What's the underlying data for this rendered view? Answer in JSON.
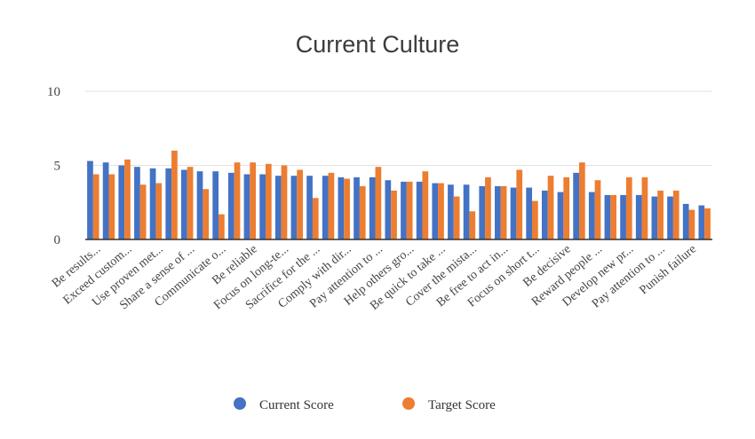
{
  "chart_data": {
    "type": "bar",
    "title": "Current Culture",
    "xlabel": "",
    "ylabel": "",
    "ylim": [
      0,
      10
    ],
    "yticks": [
      0,
      5,
      10
    ],
    "grid": true,
    "legend_position": "bottom",
    "categories": [
      "Be results...",
      "",
      "Exceed custom...",
      "",
      "Use proven met...",
      "",
      "Share a sense of ...",
      "",
      "Communicate o...",
      "",
      "Be reliable",
      "",
      "Focus on long-te...",
      "",
      "Sacrifice for the ...",
      "",
      "Comply with dir...",
      "",
      "Pay attention to ...",
      "",
      "Help others gro...",
      "",
      "Be quick to take ...",
      "",
      "Cover the mista...",
      "",
      "Be free to act in...",
      "",
      "Focus on short t...",
      "",
      "Be decisive",
      "",
      "Reward people ...",
      "",
      "Develop new pr...",
      "",
      "Pay attention to ...",
      "",
      "Punish failure",
      ""
    ],
    "series": [
      {
        "name": "Current Score",
        "color": "#4472c4",
        "values": [
          5.3,
          5.2,
          5.0,
          4.9,
          4.8,
          4.8,
          4.7,
          4.6,
          4.6,
          4.5,
          4.4,
          4.4,
          4.3,
          4.3,
          4.3,
          4.3,
          4.2,
          4.2,
          4.2,
          4.0,
          3.9,
          3.9,
          3.8,
          3.7,
          3.7,
          3.6,
          3.6,
          3.5,
          3.5,
          3.3,
          3.2,
          4.5,
          3.2,
          3.0,
          3.0,
          3.0,
          2.9,
          2.9,
          2.4,
          2.3
        ]
      },
      {
        "name": "Target Score",
        "color": "#ed7d31",
        "values": [
          4.4,
          4.4,
          5.4,
          3.7,
          3.8,
          6.0,
          4.9,
          3.4,
          1.7,
          5.2,
          5.2,
          5.1,
          5.0,
          4.7,
          2.8,
          4.5,
          4.1,
          3.6,
          4.9,
          3.3,
          3.9,
          4.6,
          3.8,
          2.9,
          1.9,
          4.2,
          3.6,
          4.7,
          2.6,
          4.3,
          4.2,
          5.2,
          4.0,
          3.0,
          4.2,
          4.2,
          3.3,
          3.3,
          2.0,
          2.1
        ]
      }
    ]
  }
}
